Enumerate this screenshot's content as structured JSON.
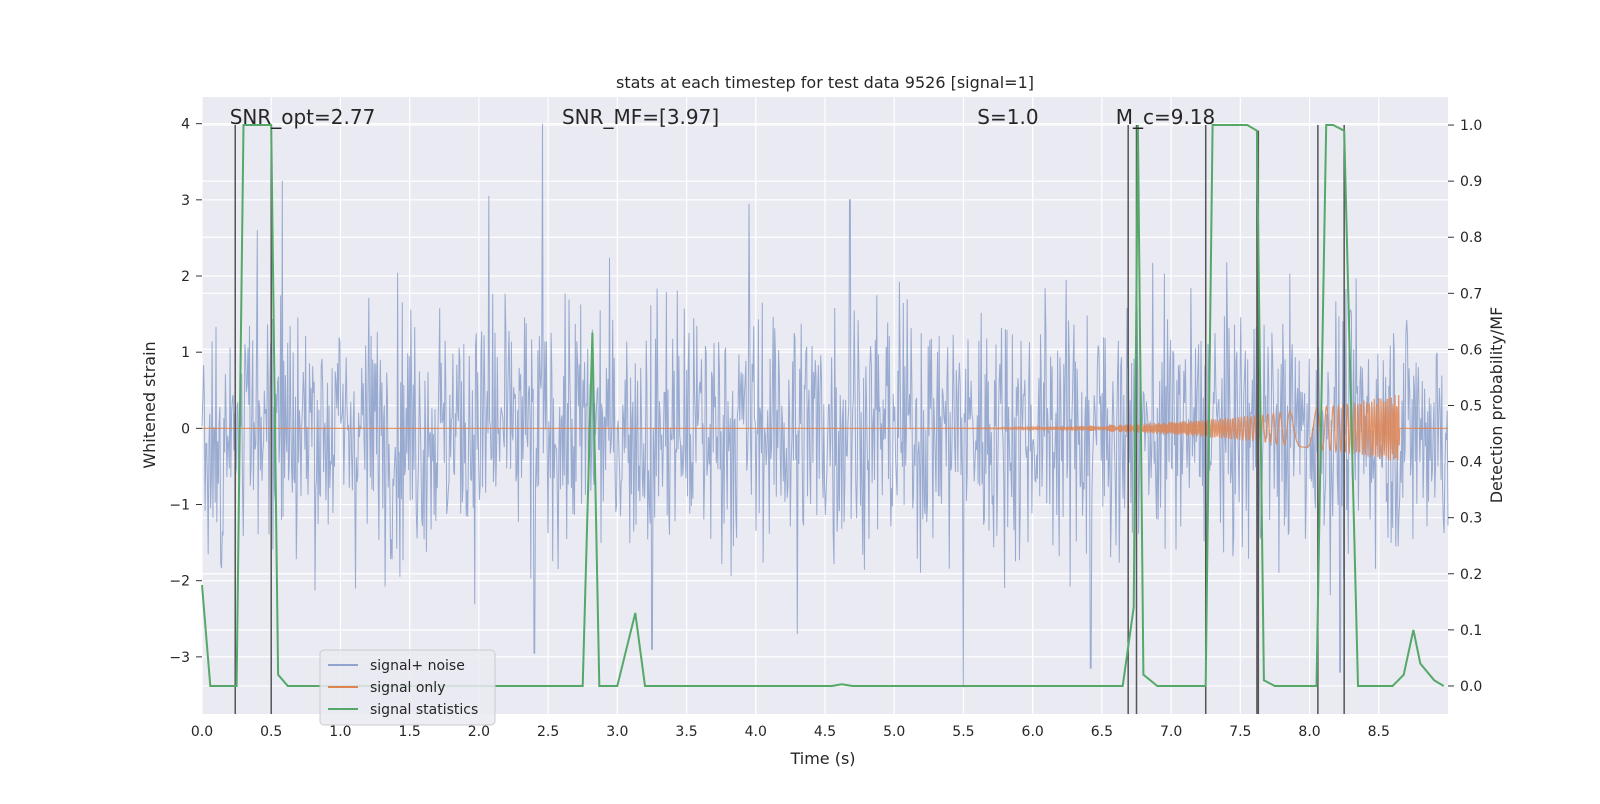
{
  "chart_data": {
    "type": "line",
    "title": "stats at each timestep for test data 9526 [signal=1]",
    "xlabel": "Time (s)",
    "ylabel_left": "Whitened strain",
    "ylabel_right": "Detection probability/MF",
    "xlim": [
      0.0,
      9.0
    ],
    "ylim_left": [
      -3.75,
      4.35
    ],
    "ylim_right": [
      -0.05,
      1.05
    ],
    "x_ticks": [
      0.0,
      0.5,
      1.0,
      1.5,
      2.0,
      2.5,
      3.0,
      3.5,
      4.0,
      4.5,
      5.0,
      5.5,
      6.0,
      6.5,
      7.0,
      7.5,
      8.0,
      8.5
    ],
    "x_tick_labels": [
      "0.0",
      "0.5",
      "1.0",
      "1.5",
      "2.0",
      "2.5",
      "3.0",
      "3.5",
      "4.0",
      "4.5",
      "5.0",
      "5.5",
      "6.0",
      "6.5",
      "7.0",
      "7.5",
      "8.0",
      "8.5"
    ],
    "y_left_ticks": [
      -3,
      -2,
      -1,
      0,
      1,
      2,
      3,
      4
    ],
    "y_left_tick_labels": [
      "−3",
      "−2",
      "−1",
      "0",
      "1",
      "2",
      "3",
      "4"
    ],
    "y_right_ticks": [
      0.0,
      0.1,
      0.2,
      0.3,
      0.4,
      0.5,
      0.6,
      0.7,
      0.8,
      0.9,
      1.0
    ],
    "y_right_tick_labels": [
      "0.0",
      "0.1",
      "0.2",
      "0.3",
      "0.4",
      "0.5",
      "0.6",
      "0.7",
      "0.8",
      "0.9",
      "1.0"
    ],
    "annotations": [
      {
        "text": "SNR_opt=2.77",
        "x": 0.2,
        "y": 4.05
      },
      {
        "text": "SNR_MF=[3.97]",
        "x": 2.6,
        "y": 4.05
      },
      {
        "text": "S=1.0",
        "x": 5.6,
        "y": 4.05
      },
      {
        "text": "M_c=9.18",
        "x": 6.6,
        "y": 4.05
      }
    ],
    "series": [
      {
        "name": "signal+ noise",
        "axis": "left",
        "color": "#8fa3cc",
        "description": "whitened strain time series (noise dominated, range about -3.4 to 4.0)",
        "highlight_peaks": [
          {
            "x": 0.4,
            "y": 2.6
          },
          {
            "x": 0.58,
            "y": 3.25
          },
          {
            "x": 2.46,
            "y": 4.0
          },
          {
            "x": 2.07,
            "y": 3.05
          },
          {
            "x": 3.95,
            "y": 2.95
          },
          {
            "x": 4.68,
            "y": 3.0
          },
          {
            "x": 4.3,
            "y": -2.7
          },
          {
            "x": 5.5,
            "y": -3.4
          },
          {
            "x": 3.25,
            "y": -2.9
          },
          {
            "x": 6.42,
            "y": -3.15
          },
          {
            "x": 8.22,
            "y": -3.2
          },
          {
            "x": 2.4,
            "y": -2.95
          }
        ]
      },
      {
        "name": "signal only",
        "axis": "left",
        "color": "#dd8452",
        "description": "chirp waveform growing in amplitude and ending at about 8.65 s",
        "chirp_start": 4.6,
        "chirp_end": 8.65,
        "max_amplitude": 0.45
      },
      {
        "name": "signal statistics",
        "axis": "right",
        "color": "#55a868",
        "x": [
          0.0,
          0.06,
          0.25,
          0.3,
          0.5,
          0.55,
          0.62,
          0.8,
          1.0,
          2.7,
          2.75,
          2.82,
          2.87,
          3.0,
          3.13,
          3.2,
          3.5,
          4.55,
          4.62,
          4.7,
          5.0,
          6.5,
          6.65,
          6.73,
          6.76,
          6.8,
          6.9,
          7.0,
          7.2,
          7.25,
          7.3,
          7.55,
          7.62,
          7.67,
          7.75,
          8.05,
          8.12,
          8.17,
          8.25,
          8.35,
          8.5,
          8.6,
          8.68,
          8.75,
          8.8,
          8.9,
          8.97
        ],
        "values": [
          0.18,
          0.0,
          0.0,
          1.0,
          1.0,
          0.02,
          0.0,
          0.0,
          0.0,
          0.0,
          0.0,
          0.63,
          0.0,
          0.0,
          0.13,
          0.0,
          0.0,
          0.0,
          0.003,
          0.0,
          0.0,
          0.0,
          0.0,
          0.14,
          1.0,
          0.02,
          0.0,
          0.0,
          0.0,
          0.0,
          1.0,
          1.0,
          0.99,
          0.01,
          0.0,
          0.0,
          1.0,
          1.0,
          0.99,
          0.0,
          0.0,
          0.0,
          0.02,
          0.1,
          0.04,
          0.01,
          0.0
        ]
      }
    ],
    "vertical_lines": {
      "color": "#555555",
      "x": [
        0.24,
        0.5,
        6.69,
        6.75,
        7.25,
        7.62,
        7.63,
        8.06,
        8.25
      ],
      "y_top": [
        1.0,
        1.0,
        1.0,
        1.0,
        1.0,
        0.99,
        0.99,
        1.0,
        1.0
      ],
      "y_bottom": [
        -0.05,
        -0.05,
        -0.05,
        -0.05,
        -0.05,
        -0.05,
        -0.05,
        -0.05,
        -0.05
      ]
    },
    "legend": {
      "location": "lower-left",
      "entries": [
        {
          "label": "signal+ noise",
          "color": "#8fa3cc"
        },
        {
          "label": "signal only",
          "color": "#dd8452"
        },
        {
          "label": "signal statistics",
          "color": "#55a868"
        }
      ]
    },
    "grid": true,
    "background": "#eaeaf2"
  }
}
